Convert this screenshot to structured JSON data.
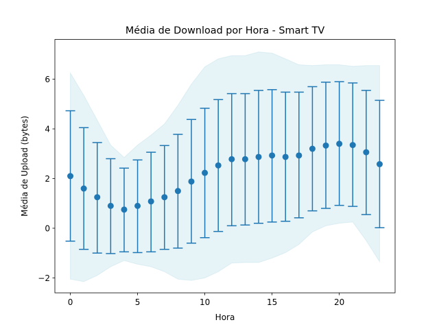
{
  "chart_data": {
    "type": "scatter",
    "title": "Média de Download por Hora - Smart TV",
    "xlabel": "Hora",
    "ylabel": "Média de Upload (bytes)",
    "xlim": [
      -1.15,
      24.15
    ],
    "ylim": [
      -2.6,
      7.6
    ],
    "xticks": [
      0,
      5,
      10,
      15,
      20
    ],
    "yticks": [
      -2,
      0,
      2,
      4,
      6
    ],
    "ytick_labels": [
      "−2",
      "0",
      "2",
      "4",
      "6"
    ],
    "grid": false,
    "legend": "none",
    "x": [
      0,
      1,
      2,
      3,
      4,
      5,
      6,
      7,
      8,
      9,
      10,
      11,
      12,
      13,
      14,
      15,
      16,
      17,
      18,
      19,
      20,
      21,
      22,
      23
    ],
    "mean": [
      2.1,
      1.6,
      1.25,
      0.9,
      0.75,
      0.9,
      1.08,
      1.25,
      1.5,
      1.88,
      2.23,
      2.53,
      2.78,
      2.78,
      2.87,
      2.93,
      2.87,
      2.93,
      3.2,
      3.33,
      3.4,
      3.35,
      3.06,
      2.58
    ],
    "error_low": [
      -0.52,
      -0.85,
      -1.0,
      -1.02,
      -0.95,
      -0.98,
      -0.95,
      -0.85,
      -0.8,
      -0.6,
      -0.38,
      -0.13,
      0.1,
      0.13,
      0.2,
      0.25,
      0.28,
      0.42,
      0.7,
      0.8,
      0.92,
      0.88,
      0.55,
      0.02
    ],
    "error_high": [
      4.73,
      4.05,
      3.45,
      2.8,
      2.42,
      2.75,
      3.06,
      3.33,
      3.78,
      4.38,
      4.83,
      5.18,
      5.42,
      5.42,
      5.55,
      5.58,
      5.48,
      5.48,
      5.7,
      5.88,
      5.9,
      5.85,
      5.55,
      5.15
    ],
    "band_low": [
      -2.05,
      -2.15,
      -1.9,
      -1.55,
      -1.3,
      -1.45,
      -1.55,
      -1.75,
      -2.05,
      -2.1,
      -2.0,
      -1.75,
      -1.4,
      -1.38,
      -1.38,
      -1.2,
      -0.98,
      -0.65,
      -0.15,
      0.1,
      0.2,
      0.25,
      -0.5,
      -1.35
    ],
    "band_high": [
      6.25,
      5.35,
      4.35,
      3.35,
      2.85,
      3.35,
      3.75,
      4.2,
      4.95,
      5.8,
      6.5,
      6.82,
      6.95,
      6.95,
      7.1,
      7.05,
      6.82,
      6.58,
      6.55,
      6.58,
      6.58,
      6.52,
      6.55,
      6.55
    ],
    "colors": {
      "points": "#1f77b4",
      "errorbars": "#1f77b4",
      "band_fill": "#add8e6",
      "band_opacity": 0.3
    }
  }
}
